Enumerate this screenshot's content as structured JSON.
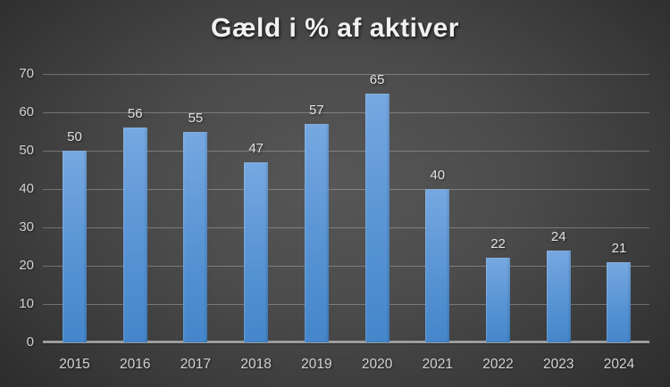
{
  "chart_data": {
    "type": "bar",
    "title": "Gæld i % af aktiver",
    "categories": [
      "2015",
      "2016",
      "2017",
      "2018",
      "2019",
      "2020",
      "2021",
      "2022",
      "2023",
      "2024"
    ],
    "values": [
      50,
      56,
      55,
      47,
      57,
      65,
      40,
      22,
      24,
      21
    ],
    "xlabel": "",
    "ylabel": "",
    "ylim": [
      0,
      70
    ],
    "yticks": [
      0,
      10,
      20,
      30,
      40,
      50,
      60,
      70
    ],
    "grid": true,
    "legend": false,
    "data_labels": true,
    "colors": {
      "bar_top": "#76a8e0",
      "bar_bottom": "#4486ca",
      "gridline": "rgba(255,255,255,0.27)",
      "axis_line": "#9d9d9d",
      "title_text": "#f1f1f1",
      "tick_text": "#d2d2d2",
      "data_label_text": "#e2e2e2",
      "background_center": "#575757",
      "background_edge": "#262626"
    }
  }
}
